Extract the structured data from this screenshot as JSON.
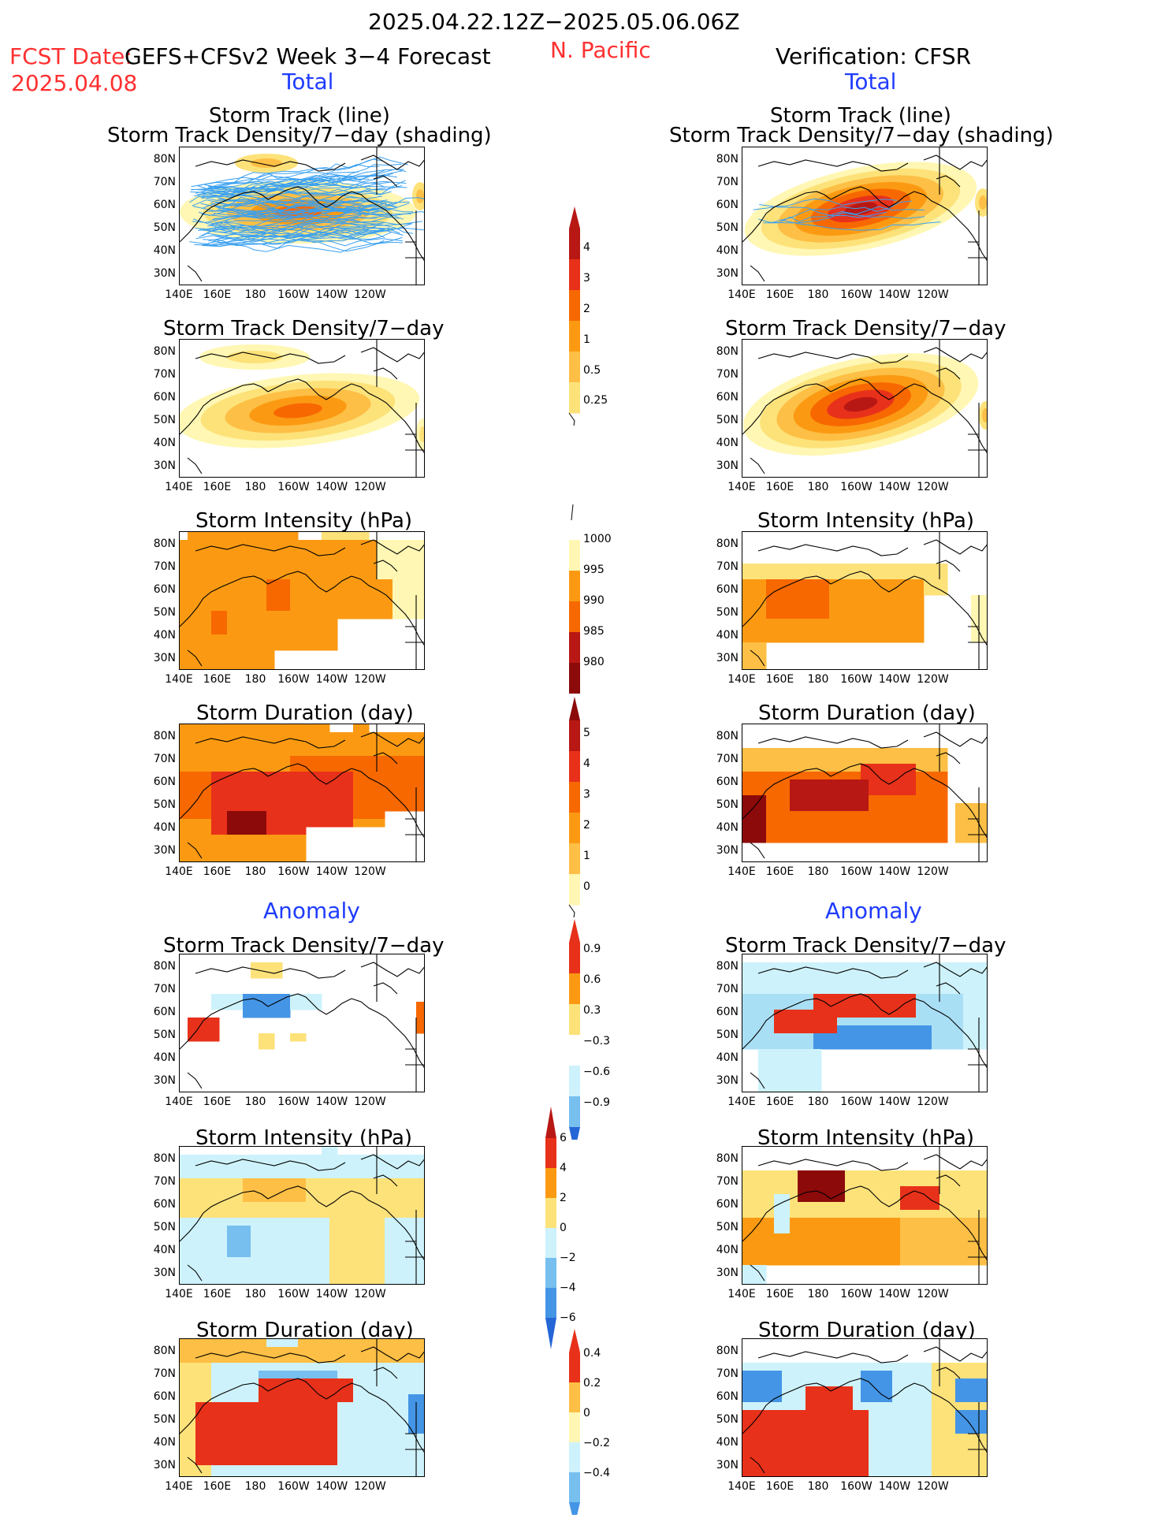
{
  "header": {
    "date_range": "2025.04.22.12Z−2025.05.06.06Z",
    "region": "N. Pacific",
    "fcst_label": "FCST Date:",
    "model": "GEFS+CFSv2 Week 3−4 Forecast",
    "fcst_date": "2025.04.08",
    "verification": "Verification: CFSR",
    "left_total": "Total",
    "right_total": "Total",
    "left_anomaly": "Anomaly",
    "right_anomaly": "Anomaly"
  },
  "panel_titles": {
    "track_line": "Storm Track (line)",
    "track_shading": "Storm Track Density/7−day (shading)",
    "density": "Storm Track Density/7−day",
    "intensity": "Storm Intensity (hPa)",
    "duration": "Storm Duration (day)"
  },
  "axes": {
    "lat_ticks": [
      "80N",
      "70N",
      "60N",
      "50N",
      "40N",
      "30N"
    ],
    "lon_ticks": [
      "140E",
      "160E",
      "180",
      "160W",
      "140W",
      "120W"
    ]
  },
  "colorbars": {
    "density_total": [
      "0.25",
      "0.5",
      "1",
      "2",
      "3",
      "4"
    ],
    "intensity_total": [
      "1000",
      "995",
      "990",
      "985",
      "980"
    ],
    "duration_total": [
      "0",
      "1",
      "2",
      "3",
      "4",
      "5"
    ],
    "density_anom": [
      "−0.9",
      "−0.6",
      "−0.3",
      "0.3",
      "0.6",
      "0.9"
    ],
    "intensity_anom": [
      "−6",
      "−4",
      "−2",
      "0",
      "2",
      "4",
      "6"
    ],
    "duration_anom": [
      "−0.4",
      "−0.2",
      "0",
      "0.2",
      "0.4"
    ]
  },
  "colors": {
    "pos": [
      "#fff7b3",
      "#fde27a",
      "#fdbf45",
      "#fb9a12",
      "#f76800",
      "#e8311a",
      "#b81814",
      "#8c0a0a"
    ],
    "neg": [
      "#cdf2fb",
      "#a9dff5",
      "#76bfef",
      "#4595e6",
      "#2466d6"
    ],
    "track_line": "#3aa0f0"
  }
}
